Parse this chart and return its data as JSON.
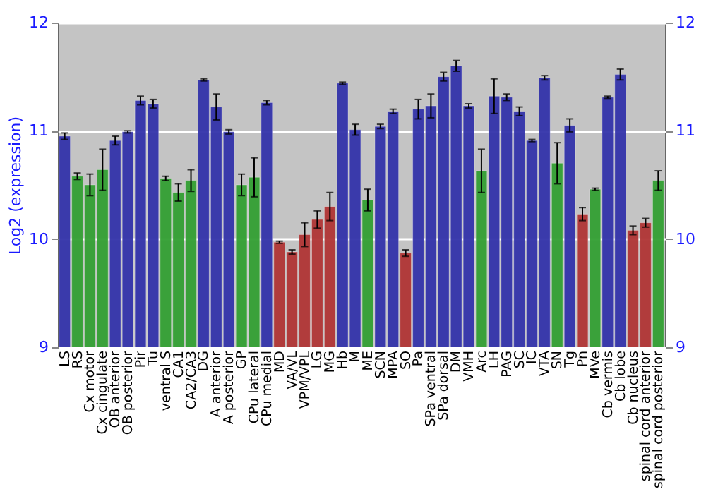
{
  "chart_data": {
    "type": "bar",
    "ylabel": "Log2 (expression)",
    "categories": [
      "LS",
      "RS",
      "Cx motor",
      "Cx cingulate",
      "OB anterior",
      "OB posterior",
      "Pir",
      "Tu",
      "ventral S",
      "CA1",
      "CA2/CA3",
      "DG",
      "A anterior",
      "A posterior",
      "GP",
      "CPu lateral",
      "CPu medial",
      "MD",
      "VA/VL",
      "VPM/VPL",
      "LG",
      "MG",
      "Hb",
      "M",
      "ME",
      "SCN",
      "MPA",
      "SO",
      "Pa",
      "SPa ventral",
      "SPa dorsal",
      "DM",
      "VMH",
      "Arc",
      "LH",
      "PAG",
      "SC",
      "IC",
      "VTA",
      "SN",
      "Tg",
      "Pn",
      "MVe",
      "Cb vermis",
      "Cb lobe",
      "Cb nucleus",
      "spinal cord anterior",
      "spinal cord posterior"
    ],
    "values": [
      10.95,
      10.58,
      10.5,
      10.64,
      10.91,
      10.99,
      11.28,
      11.25,
      10.56,
      10.43,
      10.54,
      11.47,
      11.22,
      10.99,
      10.5,
      10.57,
      11.26,
      9.97,
      9.88,
      10.04,
      10.18,
      10.3,
      11.44,
      11.01,
      10.36,
      11.04,
      11.18,
      9.87,
      11.2,
      11.23,
      11.5,
      11.6,
      11.23,
      10.63,
      11.32,
      11.31,
      11.18,
      10.91,
      11.49,
      10.7,
      11.05,
      10.23,
      10.46,
      11.31,
      11.52,
      10.08,
      10.15,
      10.54
    ],
    "errors": [
      0.03,
      0.03,
      0.1,
      0.19,
      0.04,
      0.01,
      0.04,
      0.04,
      0.02,
      0.08,
      0.1,
      0.01,
      0.12,
      0.02,
      0.1,
      0.18,
      0.02,
      0.01,
      0.02,
      0.11,
      0.08,
      0.13,
      0.01,
      0.05,
      0.1,
      0.02,
      0.02,
      0.03,
      0.09,
      0.11,
      0.04,
      0.05,
      0.02,
      0.2,
      0.16,
      0.03,
      0.04,
      0.01,
      0.02,
      0.19,
      0.06,
      0.06,
      0.01,
      0.01,
      0.05,
      0.04,
      0.04,
      0.09
    ],
    "colors": [
      "#3333aa",
      "#33a033",
      "#33a033",
      "#33a033",
      "#3333aa",
      "#3333aa",
      "#3333aa",
      "#3333aa",
      "#33a033",
      "#33a033",
      "#33a033",
      "#3333aa",
      "#3333aa",
      "#3333aa",
      "#33a033",
      "#33a033",
      "#3333aa",
      "#b03535",
      "#b03535",
      "#b03535",
      "#b03535",
      "#b03535",
      "#3333aa",
      "#3333aa",
      "#33a033",
      "#3333aa",
      "#3333aa",
      "#b03535",
      "#3333aa",
      "#3333aa",
      "#3333aa",
      "#3333aa",
      "#3333aa",
      "#33a033",
      "#3333aa",
      "#3333aa",
      "#3333aa",
      "#3333aa",
      "#3333aa",
      "#33a033",
      "#3333aa",
      "#b03535",
      "#33a033",
      "#3333aa",
      "#3333aa",
      "#b03535",
      "#b03535",
      "#33a033"
    ],
    "ylim": [
      9,
      12
    ],
    "yticks": [
      9,
      10,
      11,
      12
    ],
    "y2lim": [
      9,
      12
    ],
    "y2ticks": [
      9,
      10,
      11,
      12
    ],
    "grid": "y"
  }
}
